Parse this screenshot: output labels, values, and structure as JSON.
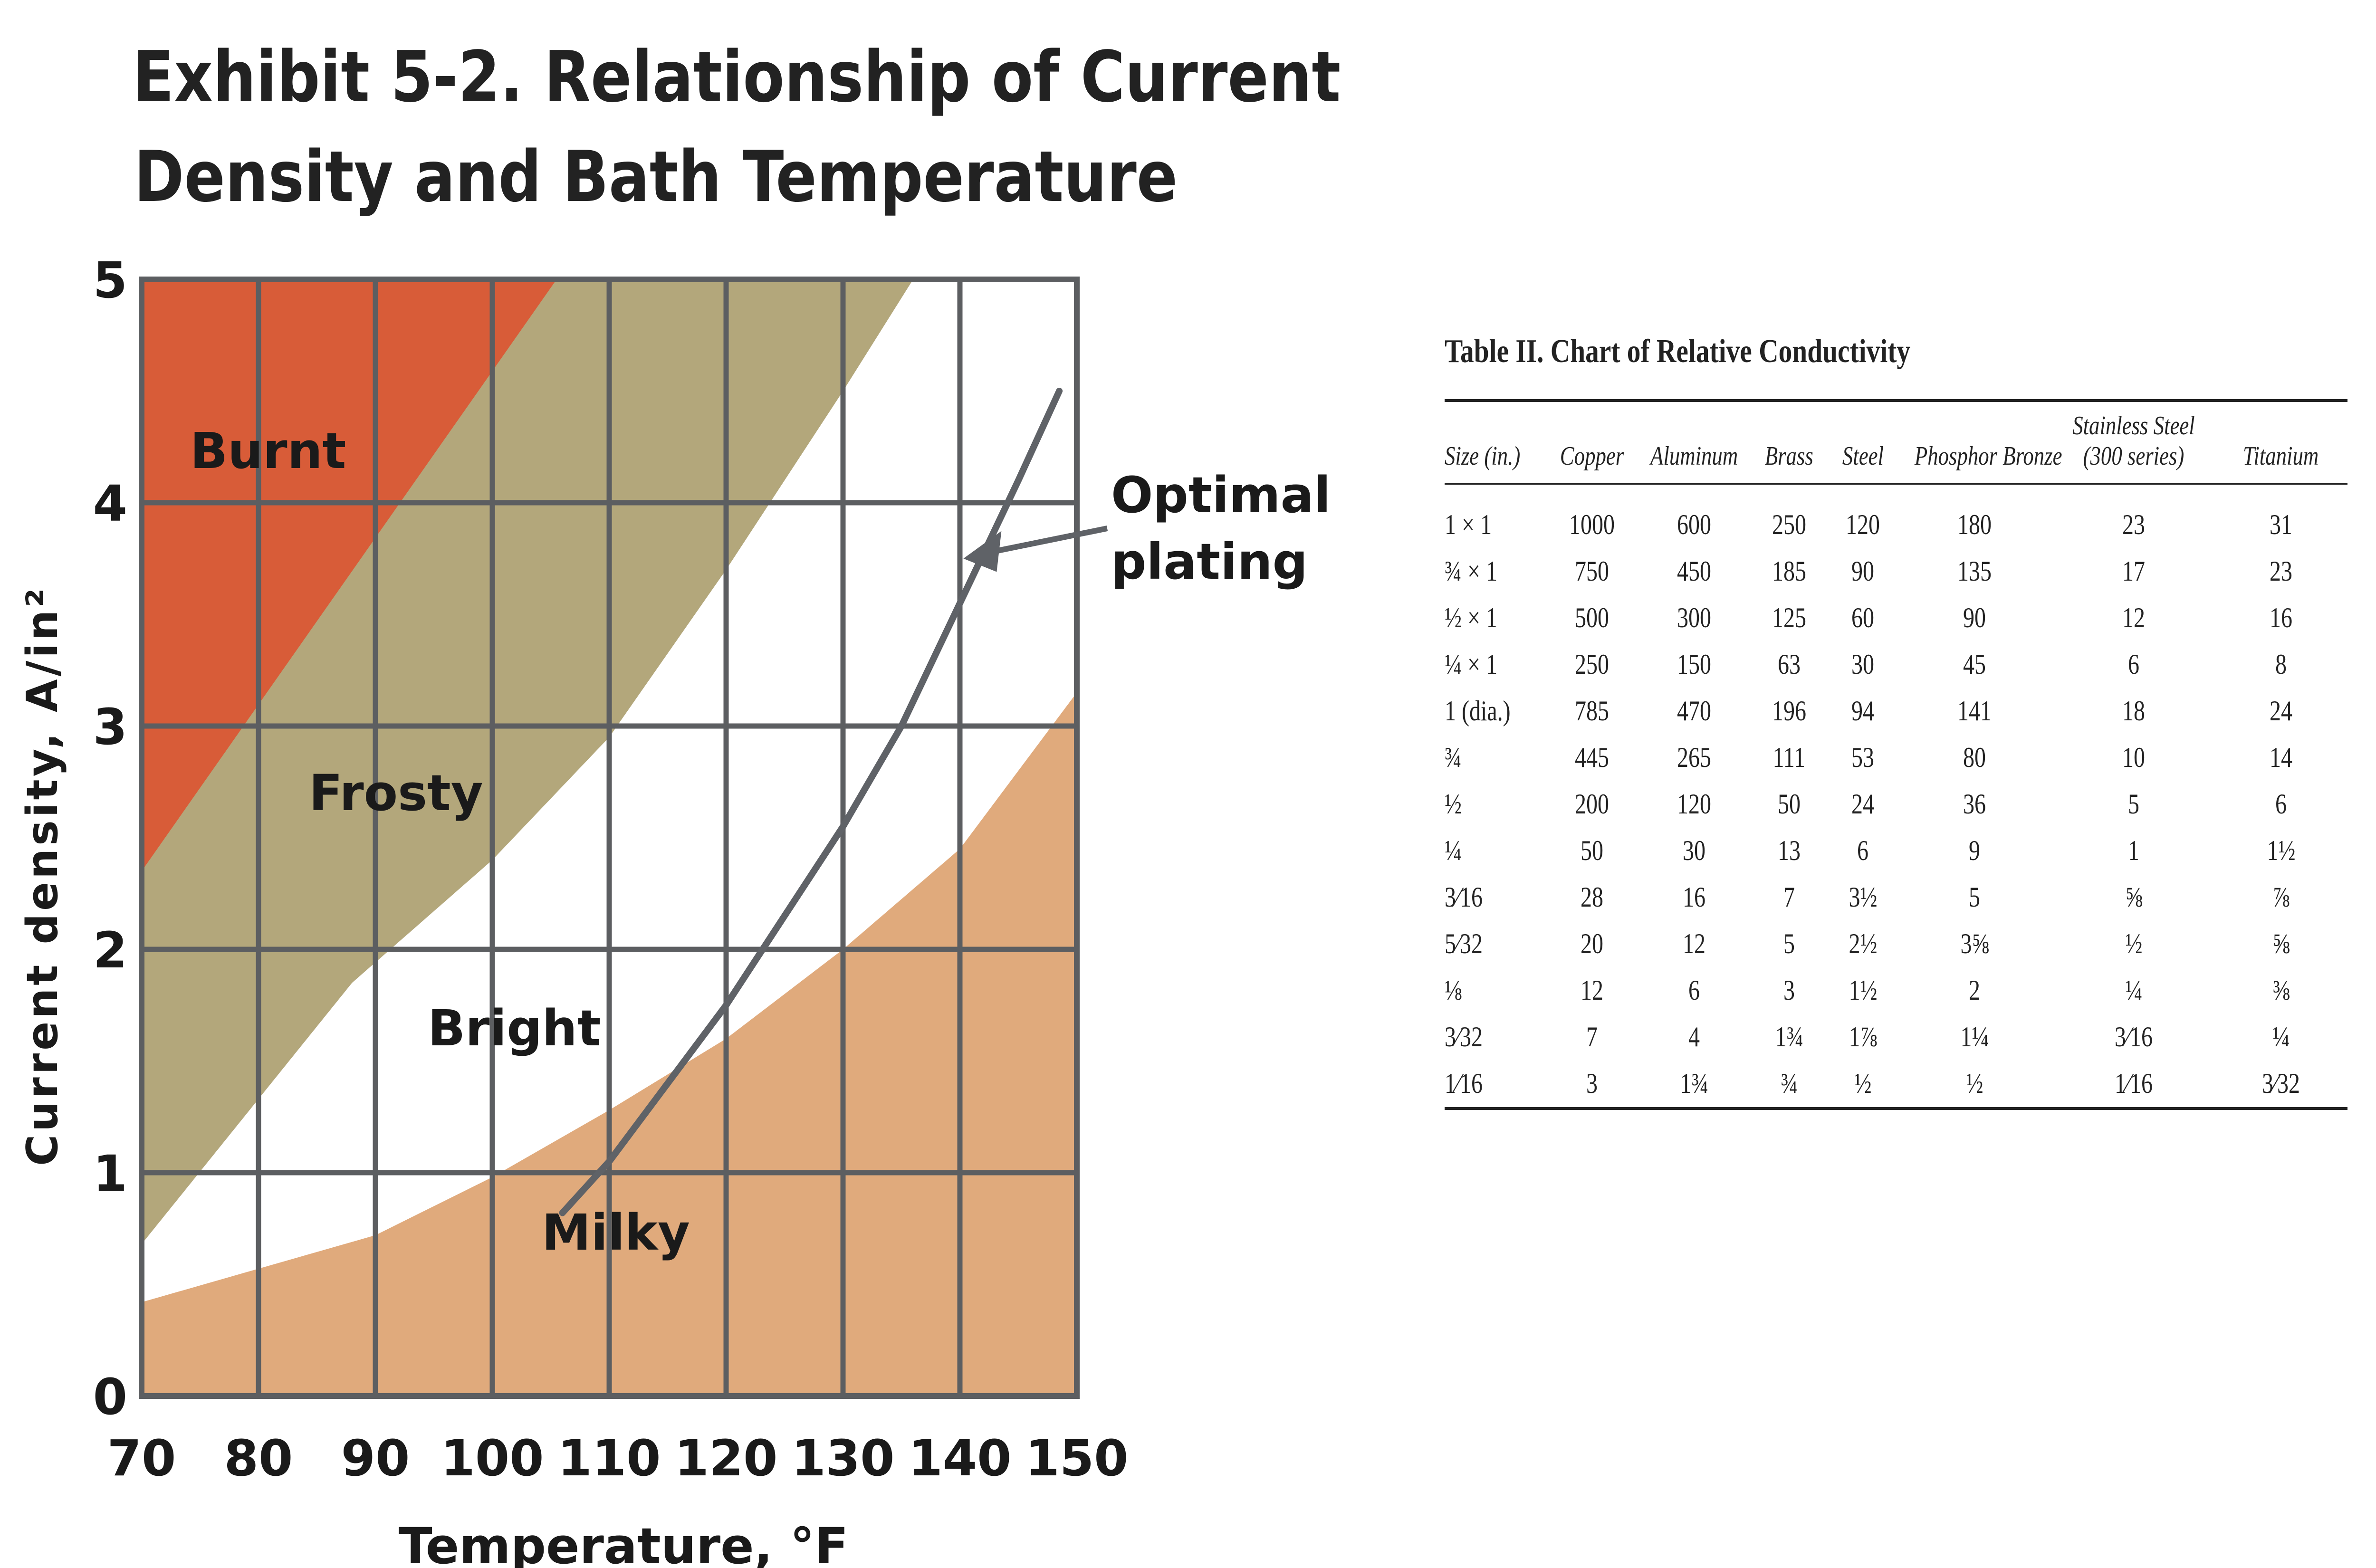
{
  "exhibit": {
    "title_line1": "Exhibit 5-2. Relationship of Current",
    "title_line2": "Density and Bath Temperature"
  },
  "chart_data": {
    "type": "area",
    "xlabel": "Temperature, °F",
    "ylabel": "Current density, A/in²",
    "xlim": [
      70,
      150
    ],
    "ylim": [
      0,
      5
    ],
    "x_ticks": [
      70,
      80,
      90,
      100,
      110,
      120,
      130,
      140,
      150
    ],
    "y_ticks": [
      0,
      1,
      2,
      3,
      4,
      5
    ],
    "grid": true,
    "regions": [
      {
        "name": "Burnt",
        "color": "#d85c38",
        "lower_boundary": [
          [
            70,
            2.35
          ],
          [
            105.5,
            5.0
          ]
        ]
      },
      {
        "name": "Frosty",
        "color": "#b3a77b",
        "lower_boundary": [
          [
            70,
            0.68
          ],
          [
            78,
            1.2
          ],
          [
            88,
            1.85
          ],
          [
            100,
            2.4
          ],
          [
            110,
            2.95
          ],
          [
            120,
            3.7
          ],
          [
            130,
            4.5
          ],
          [
            136,
            5.0
          ]
        ]
      },
      {
        "name": "Bright",
        "color": "#ffffff",
        "lower_boundary": [
          [
            70,
            0.42
          ],
          [
            80,
            0.57
          ],
          [
            90,
            0.72
          ],
          [
            100,
            0.98
          ],
          [
            110,
            1.28
          ],
          [
            120,
            1.6
          ],
          [
            130,
            2.0
          ],
          [
            140,
            2.45
          ],
          [
            150,
            3.15
          ]
        ]
      },
      {
        "name": "Milky",
        "color": "#e0aa7c"
      }
    ],
    "series": [
      {
        "name": "Optimal plating",
        "x": [
          106,
          110,
          120,
          130,
          135,
          140,
          145,
          148.5
        ],
        "y": [
          0.82,
          1.05,
          1.75,
          2.55,
          3.0,
          3.55,
          4.1,
          4.5
        ]
      }
    ],
    "annotations": [
      {
        "text": "Optimal",
        "line2": "plating",
        "points_to": [
          140.3,
          3.75
        ]
      }
    ],
    "region_labels": [
      {
        "text": "Burnt"
      },
      {
        "text": "Frosty"
      },
      {
        "text": "Bright"
      },
      {
        "text": "Milky"
      }
    ]
  },
  "table": {
    "title": "Table II. Chart of Relative Conductivity",
    "headers": [
      "Size (in.)",
      "Copper",
      "Aluminum",
      "Brass",
      "Steel",
      "Phosphor Bronze",
      "Stainless Steel",
      "Titanium"
    ],
    "header_sub": {
      "Stainless Steel": "(300 series)"
    },
    "rows": [
      [
        "1 × 1",
        "1000",
        "600",
        "250",
        "120",
        "180",
        "23",
        "31"
      ],
      [
        "¾ × 1",
        "750",
        "450",
        "185",
        "90",
        "135",
        "17",
        "23"
      ],
      [
        "½ × 1",
        "500",
        "300",
        "125",
        "60",
        "90",
        "12",
        "16"
      ],
      [
        "¼ × 1",
        "250",
        "150",
        "63",
        "30",
        "45",
        "6",
        "8"
      ],
      [
        "1 (dia.)",
        "785",
        "470",
        "196",
        "94",
        "141",
        "18",
        "24"
      ],
      [
        "¾",
        "445",
        "265",
        "111",
        "53",
        "80",
        "10",
        "14"
      ],
      [
        "½",
        "200",
        "120",
        "50",
        "24",
        "36",
        "5",
        "6"
      ],
      [
        "¼",
        "50",
        "30",
        "13",
        "6",
        "9",
        "1",
        "1½"
      ],
      [
        "3⁄16",
        "28",
        "16",
        "7",
        "3½",
        "5",
        "⅝",
        "⅞"
      ],
      [
        "5⁄32",
        "20",
        "12",
        "5",
        "2½",
        "3⅝",
        "½",
        "⅝"
      ],
      [
        "⅛",
        "12",
        "6",
        "3",
        "1½",
        "2",
        "¼",
        "⅜"
      ],
      [
        "3⁄32",
        "7",
        "4",
        "1¾",
        "1⅞",
        "1¼",
        "3⁄16",
        "¼"
      ],
      [
        "1⁄16",
        "3",
        "1¾",
        "¾",
        "½",
        "½",
        "1⁄16",
        "3⁄32"
      ]
    ]
  }
}
